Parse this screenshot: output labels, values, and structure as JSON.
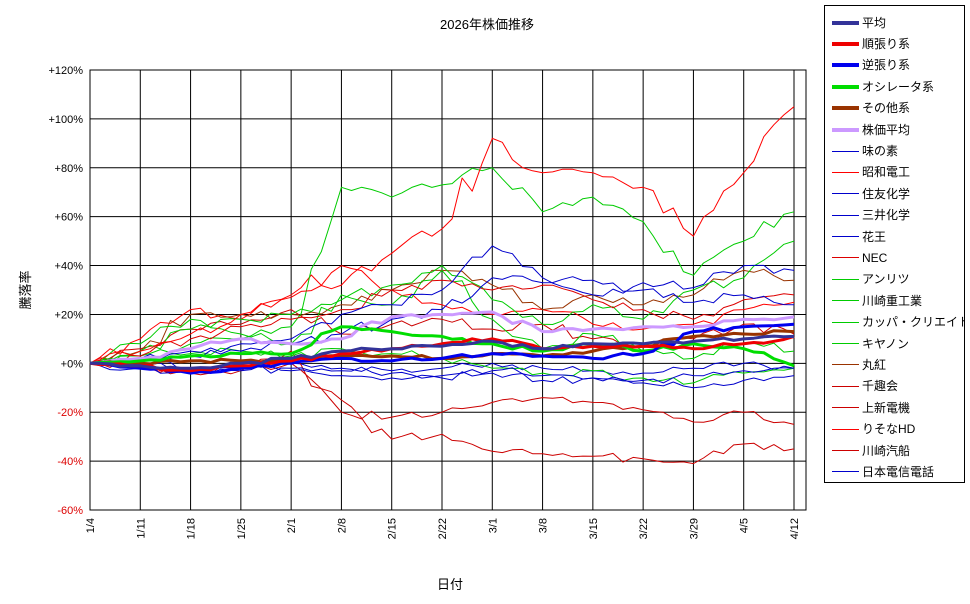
{
  "title": "2026年株価推移",
  "x_axis_label": "日付",
  "y_axis_label": "騰落率",
  "chart_data": {
    "type": "line",
    "title": "2026年株価推移",
    "xlabel": "日付",
    "ylabel": "騰落率",
    "x_tick_labels": [
      "1/4",
      "1/11",
      "1/18",
      "1/25",
      "2/1",
      "2/8",
      "2/15",
      "2/22",
      "3/1",
      "3/8",
      "3/15",
      "3/22",
      "3/29",
      "4/5",
      "4/12"
    ],
    "y_ticks": [
      120,
      100,
      80,
      60,
      40,
      20,
      0,
      -20,
      -40,
      -60
    ],
    "ylim": [
      -60,
      120
    ],
    "y_unit": "%",
    "grid": true,
    "legend_position": "right",
    "negative_tick_color": "#dd0000",
    "positive_tick_color": "#000000",
    "series": [
      {
        "name": "平均",
        "color": "#333399",
        "thick": true,
        "values": [
          0,
          -1,
          -2,
          0,
          2,
          5,
          6,
          7,
          9,
          6,
          8,
          8,
          9,
          10,
          11
        ]
      },
      {
        "name": "順張り系",
        "color": "#ee0000",
        "thick": true,
        "values": [
          0,
          -1,
          -3,
          -1,
          1,
          4,
          6,
          8,
          10,
          6,
          7,
          7,
          6,
          8,
          11
        ]
      },
      {
        "name": "逆張り系",
        "color": "#0000ee",
        "thick": true,
        "values": [
          0,
          -2,
          -4,
          -2,
          0,
          2,
          1,
          2,
          4,
          3,
          2,
          4,
          13,
          15,
          16
        ]
      },
      {
        "name": "オシレータ系",
        "color": "#00dd00",
        "thick": true,
        "values": [
          0,
          1,
          3,
          4,
          4,
          15,
          13,
          11,
          8,
          5,
          8,
          5,
          8,
          6,
          -1
        ]
      },
      {
        "name": "その他系",
        "color": "#993300",
        "thick": true,
        "values": [
          0,
          0,
          1,
          1,
          2,
          3,
          3,
          2,
          4,
          3,
          5,
          7,
          11,
          12,
          13
        ]
      },
      {
        "name": "株価平均",
        "color": "#cc99ff",
        "thick": true,
        "values": [
          0,
          2,
          6,
          10,
          8,
          10,
          19,
          20,
          21,
          13,
          14,
          15,
          15,
          18,
          19
        ]
      },
      {
        "name": "味の素",
        "color": "#0000cc",
        "thick": false,
        "values": [
          0,
          -2,
          -3,
          -2,
          -3,
          -5,
          -6,
          -6,
          -4,
          -7,
          -6,
          -7,
          -5,
          -3,
          -2
        ]
      },
      {
        "name": "昭和電工",
        "color": "#ff0000",
        "thick": false,
        "values": [
          0,
          5,
          12,
          20,
          27,
          32,
          45,
          55,
          92,
          78,
          78,
          72,
          52,
          78,
          105
        ]
      },
      {
        "name": "住友化学",
        "color": "#0000cc",
        "thick": false,
        "values": [
          0,
          2,
          5,
          8,
          10,
          20,
          24,
          30,
          48,
          35,
          28,
          33,
          31,
          40,
          38
        ]
      },
      {
        "name": "三井化学",
        "color": "#0000cc",
        "thick": false,
        "values": [
          0,
          1,
          3,
          5,
          8,
          12,
          18,
          22,
          35,
          33,
          34,
          30,
          25,
          28,
          24
        ]
      },
      {
        "name": "花王",
        "color": "#0000cc",
        "thick": false,
        "values": [
          0,
          -1,
          -2,
          -3,
          -2,
          -3,
          -4,
          -5,
          -3,
          -5,
          -6,
          -8,
          -10,
          -7,
          -5
        ]
      },
      {
        "name": "NEC",
        "color": "#dd0000",
        "thick": false,
        "values": [
          0,
          3,
          10,
          15,
          18,
          22,
          30,
          34,
          30,
          32,
          26,
          22,
          18,
          26,
          28
        ]
      },
      {
        "name": "アンリツ",
        "color": "#00cc00",
        "thick": false,
        "values": [
          0,
          3,
          8,
          10,
          15,
          72,
          68,
          73,
          80,
          62,
          68,
          58,
          36,
          50,
          62
        ]
      },
      {
        "name": "川崎重工業",
        "color": "#00cc00",
        "thick": false,
        "values": [
          0,
          5,
          14,
          18,
          20,
          26,
          32,
          40,
          26,
          16,
          24,
          18,
          30,
          35,
          50
        ]
      },
      {
        "name": "カッパ・クリエイト",
        "color": "#00cc00",
        "thick": false,
        "values": [
          0,
          8,
          18,
          12,
          8,
          28,
          24,
          38,
          18,
          6,
          12,
          5,
          2,
          8,
          5
        ]
      },
      {
        "name": "キヤノン",
        "color": "#00cc00",
        "thick": false,
        "values": [
          0,
          2,
          4,
          5,
          3,
          6,
          4,
          2,
          -2,
          -4,
          -3,
          -6,
          -8,
          -4,
          -2
        ]
      },
      {
        "name": "丸紅",
        "color": "#993300",
        "thick": false,
        "values": [
          0,
          5,
          20,
          20,
          20,
          24,
          30,
          38,
          32,
          22,
          28,
          24,
          28,
          38,
          34
        ]
      },
      {
        "name": "千趣会",
        "color": "#cc0000",
        "thick": false,
        "values": [
          0,
          -2,
          -4,
          -3,
          5,
          -20,
          -22,
          -20,
          -16,
          -14,
          -16,
          -19,
          -24,
          -20,
          -25
        ]
      },
      {
        "name": "上新電機",
        "color": "#cc0000",
        "thick": false,
        "values": [
          0,
          -1,
          -3,
          -2,
          0,
          -15,
          -31,
          -29,
          -36,
          -37,
          -38,
          -39,
          -41,
          -33,
          -35
        ]
      },
      {
        "name": "りそなHD",
        "color": "#ff0000",
        "thick": false,
        "values": [
          0,
          10,
          22,
          18,
          28,
          40,
          30,
          24,
          20,
          22,
          16,
          14,
          16,
          22,
          25
        ]
      },
      {
        "name": "川崎汽船",
        "color": "#cc0000",
        "thick": false,
        "values": [
          0,
          6,
          14,
          16,
          22,
          12,
          16,
          18,
          14,
          16,
          10,
          8,
          10,
          16,
          12
        ]
      },
      {
        "name": "日本電信電話",
        "color": "#0000cc",
        "thick": false,
        "values": [
          0,
          0,
          -2,
          -1,
          0,
          -2,
          -3,
          -2,
          0,
          -2,
          -3,
          -4,
          -2,
          0,
          -2
        ]
      }
    ]
  }
}
